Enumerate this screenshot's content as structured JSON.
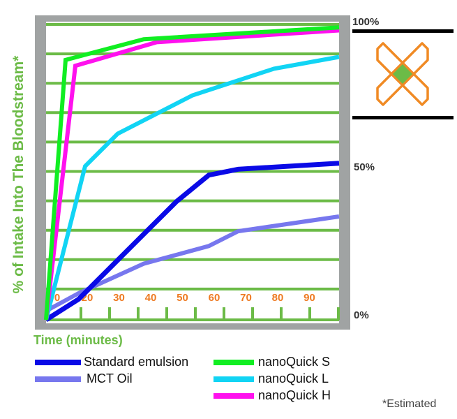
{
  "chart_data": {
    "type": "line",
    "title": "",
    "xlabel": "Time (minutes)",
    "ylabel": "% of Intake Into The Bloodstream*",
    "x_tick_labels": [
      "0",
      "20",
      "30",
      "40",
      "50",
      "60",
      "70",
      "80",
      "90"
    ],
    "y_tick_labels": [
      "0%",
      "50%",
      "100%"
    ],
    "xlim": [
      10,
      100
    ],
    "ylim": [
      0,
      100
    ],
    "grid": "horizontal",
    "legend_position": "bottom",
    "footnote": "*Estimated",
    "series": [
      {
        "name": "Standard emulsion",
        "color": "#0a0ae6",
        "x": [
          10,
          20,
          30,
          40,
          50,
          60,
          69,
          100
        ],
        "y": [
          0,
          7,
          18,
          29,
          40,
          49,
          51,
          53
        ]
      },
      {
        "name": "MCT Oil",
        "color": "#7777ee",
        "x": [
          10,
          20,
          40,
          60,
          69,
          100
        ],
        "y": [
          3,
          9,
          19,
          25,
          30,
          35
        ]
      },
      {
        "name": "nanoQuick S",
        "color": "#11ee22",
        "x": [
          10,
          16,
          40,
          100
        ],
        "y": [
          0,
          88,
          95,
          99
        ]
      },
      {
        "name": "nanoQuick L",
        "color": "#11d4f4",
        "x": [
          10,
          22,
          32,
          55,
          80,
          100
        ],
        "y": [
          0,
          52,
          63,
          76,
          85,
          89
        ]
      },
      {
        "name": "nanoQuick H",
        "color": "#ff11ee",
        "x": [
          10,
          19,
          44,
          100
        ],
        "y": [
          0,
          86,
          94,
          98
        ]
      }
    ]
  },
  "axes": {
    "y_title": "% of Intake Into The Bloodstream*",
    "x_title": "Time (minutes)",
    "pct_100": "100%",
    "pct_50": "50%",
    "pct_0": "0%",
    "x_ticks": [
      "0",
      "20",
      "30",
      "40",
      "50",
      "60",
      "70",
      "80",
      "90"
    ]
  },
  "legend": {
    "items": [
      {
        "label": "Standard emulsion",
        "color": "#0a0ae6"
      },
      {
        "label": "MCT Oil",
        "color": "#7777ee"
      },
      {
        "label": "nanoQuick S",
        "color": "#11ee22"
      },
      {
        "label": "nanoQuick L",
        "color": "#11d4f4"
      },
      {
        "label": "nanoQuick H",
        "color": "#ff11ee"
      }
    ]
  },
  "footnote": "*Estimated",
  "logo": {
    "icon": "x-logo-icon",
    "outline_color": "#f08a24",
    "center_color": "#6cbb47"
  },
  "colors": {
    "frame": "#a0a3a3",
    "grid": "#6cbb47",
    "tick_label": "#ee7a22"
  }
}
